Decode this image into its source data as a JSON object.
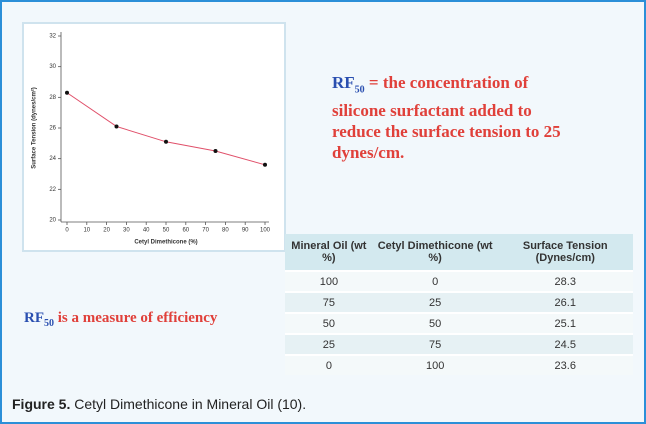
{
  "chart_data": {
    "type": "line",
    "x_label": "Cetyl Dimethicone (%)",
    "y_label": "Surface Tension (dynes/cm²)",
    "x": [
      0,
      25,
      50,
      75,
      100
    ],
    "series": [
      {
        "values": [
          28.3,
          26.1,
          25.1,
          24.5,
          23.6
        ],
        "color": "#e0506a",
        "marker_color": "#111111"
      }
    ],
    "xlim": [
      0,
      100
    ],
    "xticks": [
      0,
      10,
      20,
      30,
      40,
      50,
      60,
      70,
      80,
      90,
      100
    ],
    "ylim": [
      20,
      32
    ],
    "yticks": [
      20,
      22,
      24,
      26,
      28,
      30,
      32
    ]
  },
  "definition": {
    "term": "RF",
    "subscript": "50",
    "text": "= the concentration of silicone surfactant added to reduce the surface tension to 25 dynes/cm."
  },
  "note": {
    "term": "RF",
    "subscript": "50",
    "text": "is a measure of efficiency"
  },
  "table": {
    "header": [
      "Mineral Oil (wt %)",
      "Cetyl Dimethicone (wt %)",
      "Surface Tension (Dynes/cm)"
    ],
    "rows": [
      [
        "100",
        "0",
        "28.3"
      ],
      [
        "75",
        "25",
        "26.1"
      ],
      [
        "50",
        "50",
        "25.1"
      ],
      [
        "25",
        "75",
        "24.5"
      ],
      [
        "0",
        "100",
        "23.6"
      ]
    ]
  },
  "caption": {
    "label": "Figure 5.",
    "text": "Cetyl Dimethicone in Mineral Oil (10)."
  }
}
